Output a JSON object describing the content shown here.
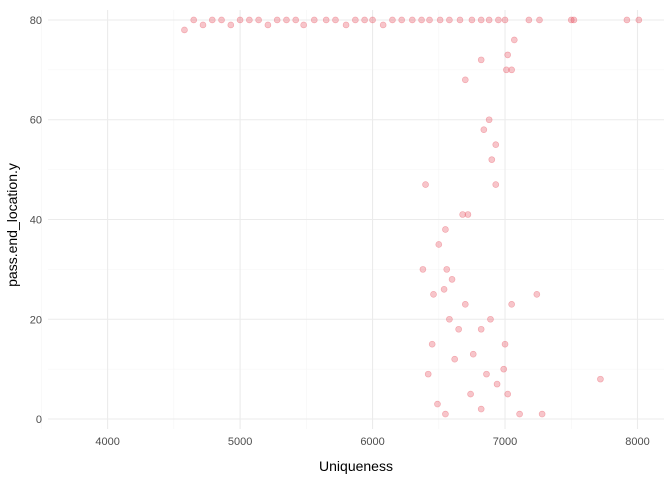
{
  "chart_data": {
    "type": "scatter",
    "title": "",
    "xlabel": "Uniqueness",
    "ylabel": "pass.end_location.y",
    "xlim": [
      3550,
      8200
    ],
    "ylim": [
      -2,
      82
    ],
    "x_ticks": [
      4000,
      5000,
      6000,
      7000,
      8000
    ],
    "y_ticks": [
      0,
      20,
      40,
      60,
      80
    ],
    "x_tick_labels": [
      "4000",
      "5000",
      "6000",
      "7000",
      "8000"
    ],
    "y_tick_labels": [
      "0",
      "20",
      "40",
      "60",
      "80"
    ],
    "grid": true,
    "legend": "none",
    "marker_color": "#e5404f",
    "marker_opacity": 0.3,
    "series": [
      {
        "values": [
          [
            7920,
            80
          ],
          [
            8010,
            80
          ],
          [
            7500,
            80
          ],
          [
            7520,
            80
          ],
          [
            7180,
            80
          ],
          [
            7260,
            80
          ],
          [
            7000,
            80
          ],
          [
            6950,
            80
          ],
          [
            6880,
            80
          ],
          [
            6820,
            80
          ],
          [
            6750,
            80
          ],
          [
            6660,
            80
          ],
          [
            6580,
            80
          ],
          [
            6510,
            80
          ],
          [
            6430,
            80
          ],
          [
            6370,
            80
          ],
          [
            6300,
            80
          ],
          [
            6220,
            80
          ],
          [
            6150,
            80
          ],
          [
            6080,
            79
          ],
          [
            6000,
            80
          ],
          [
            5940,
            80
          ],
          [
            5870,
            80
          ],
          [
            5800,
            79
          ],
          [
            5720,
            80
          ],
          [
            5650,
            80
          ],
          [
            5560,
            80
          ],
          [
            5480,
            79
          ],
          [
            5420,
            80
          ],
          [
            5350,
            80
          ],
          [
            5280,
            80
          ],
          [
            5210,
            79
          ],
          [
            5140,
            80
          ],
          [
            5070,
            80
          ],
          [
            5000,
            80
          ],
          [
            4930,
            79
          ],
          [
            4860,
            80
          ],
          [
            4790,
            80
          ],
          [
            4720,
            79
          ],
          [
            4650,
            80
          ],
          [
            4580,
            78
          ],
          [
            7070,
            76
          ],
          [
            7020,
            73
          ],
          [
            7010,
            70
          ],
          [
            7050,
            70
          ],
          [
            6820,
            72
          ],
          [
            6700,
            68
          ],
          [
            6880,
            60
          ],
          [
            6840,
            58
          ],
          [
            6930,
            55
          ],
          [
            6930,
            47
          ],
          [
            6900,
            52
          ],
          [
            6720,
            41
          ],
          [
            6680,
            41
          ],
          [
            6550,
            38
          ],
          [
            6400,
            47
          ],
          [
            6500,
            35
          ],
          [
            6380,
            30
          ],
          [
            6460,
            25
          ],
          [
            6540,
            26
          ],
          [
            6560,
            30
          ],
          [
            6600,
            28
          ],
          [
            6700,
            23
          ],
          [
            6890,
            20
          ],
          [
            7050,
            23
          ],
          [
            7240,
            25
          ],
          [
            6820,
            18
          ],
          [
            6650,
            18
          ],
          [
            6580,
            20
          ],
          [
            7000,
            15
          ],
          [
            7020,
            5
          ],
          [
            6940,
            7
          ],
          [
            7110,
            1
          ],
          [
            7280,
            1
          ],
          [
            7720,
            8
          ],
          [
            6990,
            10
          ],
          [
            6860,
            9
          ],
          [
            6760,
            13
          ],
          [
            6740,
            5
          ],
          [
            6620,
            12
          ],
          [
            6490,
            3
          ],
          [
            6420,
            9
          ],
          [
            6450,
            15
          ],
          [
            6550,
            1
          ],
          [
            6820,
            2
          ]
        ]
      }
    ]
  }
}
